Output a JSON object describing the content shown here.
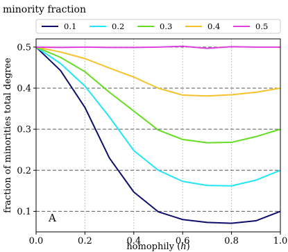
{
  "chart_data": {
    "type": "line",
    "xlabel": "homophily (h)",
    "ylabel": "fraction of minorities total degree",
    "panel_label": "A",
    "legend_title": "minority fraction",
    "legend_position": "top",
    "xlim": [
      0.0,
      1.0
    ],
    "ylim": [
      0.05,
      0.52
    ],
    "x_ticks": [
      "0.0",
      "0.2",
      "0.4",
      "0.6",
      "0.8",
      "1.0"
    ],
    "y_ticks": [
      "0.1",
      "0.2",
      "0.3",
      "0.4",
      "0.5"
    ],
    "horizontal_grid": "dashed",
    "vertical_grid": "dotted",
    "x": [
      0.0,
      0.1,
      0.2,
      0.3,
      0.4,
      0.5,
      0.6,
      0.7,
      0.8,
      0.9,
      1.0
    ],
    "series": [
      {
        "name": "0.1",
        "color": "#0d0d6b",
        "values": [
          0.5,
          0.443,
          0.353,
          0.23,
          0.147,
          0.099,
          0.08,
          0.073,
          0.071,
          0.077,
          0.1
        ]
      },
      {
        "name": "0.2",
        "color": "#22e5f5",
        "values": [
          0.5,
          0.46,
          0.405,
          0.33,
          0.248,
          0.2,
          0.173,
          0.163,
          0.162,
          0.176,
          0.2
        ]
      },
      {
        "name": "0.3",
        "color": "#66dd22",
        "values": [
          0.5,
          0.475,
          0.44,
          0.39,
          0.344,
          0.298,
          0.275,
          0.267,
          0.268,
          0.282,
          0.3
        ]
      },
      {
        "name": "0.4",
        "color": "#f5c22a",
        "values": [
          0.5,
          0.488,
          0.472,
          0.449,
          0.427,
          0.4,
          0.383,
          0.381,
          0.384,
          0.39,
          0.4
        ]
      },
      {
        "name": "0.5",
        "color": "#e040e0",
        "values": [
          0.5,
          0.499,
          0.5,
          0.499,
          0.499,
          0.5,
          0.502,
          0.497,
          0.501,
          0.5,
          0.5
        ]
      }
    ]
  }
}
